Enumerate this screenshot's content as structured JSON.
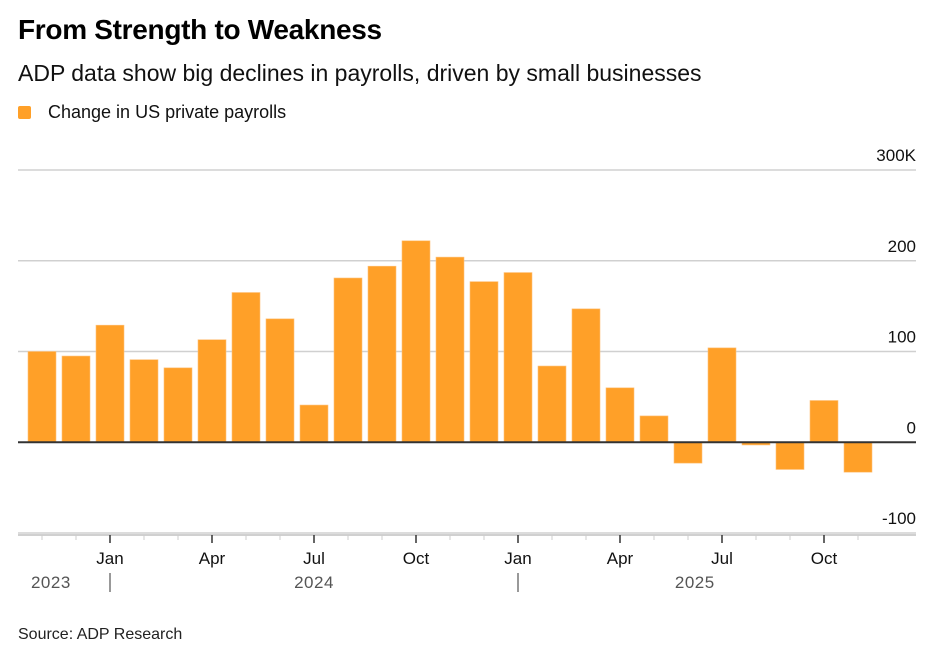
{
  "title": "From Strength to Weakness",
  "subtitle": "ADP data show big declines in payrolls, driven by small businesses",
  "source": "Source: ADP Research",
  "colors": {
    "bar": "#FFA028",
    "grid": "#d0d0d0",
    "zero": "#333333"
  },
  "chart_data": {
    "type": "bar",
    "title": "From Strength to Weakness",
    "subtitle": "ADP data show big declines in payrolls, driven by small businesses",
    "legend": [
      {
        "name": "Change in US private payrolls",
        "color": "#FFA028"
      }
    ],
    "legend_position": "top-left",
    "xlabel": "",
    "ylabel": "",
    "units": "thousands",
    "ylim": [
      -100,
      300
    ],
    "yticks": [
      {
        "value": 300,
        "label": "300K"
      },
      {
        "value": 200,
        "label": "200"
      },
      {
        "value": 100,
        "label": "100"
      },
      {
        "value": 0,
        "label": "0"
      },
      {
        "value": -100,
        "label": "-100"
      }
    ],
    "grid": true,
    "categories": [
      "2023-11",
      "2023-12",
      "2024-01",
      "2024-02",
      "2024-03",
      "2024-04",
      "2024-05",
      "2024-06",
      "2024-07",
      "2024-08",
      "2024-09",
      "2024-10",
      "2024-11",
      "2024-12",
      "2025-01",
      "2025-02",
      "2025-03",
      "2025-04",
      "2025-05",
      "2025-06",
      "2025-07",
      "2025-08",
      "2025-09",
      "2025-10",
      "2025-11"
    ],
    "values": [
      100,
      95,
      129,
      91,
      82,
      113,
      165,
      136,
      41,
      181,
      194,
      222,
      204,
      177,
      187,
      84,
      147,
      60,
      29,
      -23,
      104,
      -3,
      -30,
      46,
      -33
    ],
    "xticks": [
      {
        "index": 2,
        "label": "Jan"
      },
      {
        "index": 5,
        "label": "Apr"
      },
      {
        "index": 8,
        "label": "Jul"
      },
      {
        "index": 11,
        "label": "Oct"
      },
      {
        "index": 14,
        "label": "Jan"
      },
      {
        "index": 17,
        "label": "Apr"
      },
      {
        "index": 20,
        "label": "Jul"
      },
      {
        "index": 23,
        "label": "Oct"
      }
    ],
    "year_labels": [
      {
        "label": "2023",
        "anchor_index": 1.2,
        "align": "end"
      },
      {
        "label": "2024",
        "anchor_index": 8,
        "align": "middle"
      },
      {
        "label": "2025",
        "anchor_index": 19.2,
        "align": "middle"
      }
    ],
    "year_dividers": [
      2,
      14
    ]
  }
}
